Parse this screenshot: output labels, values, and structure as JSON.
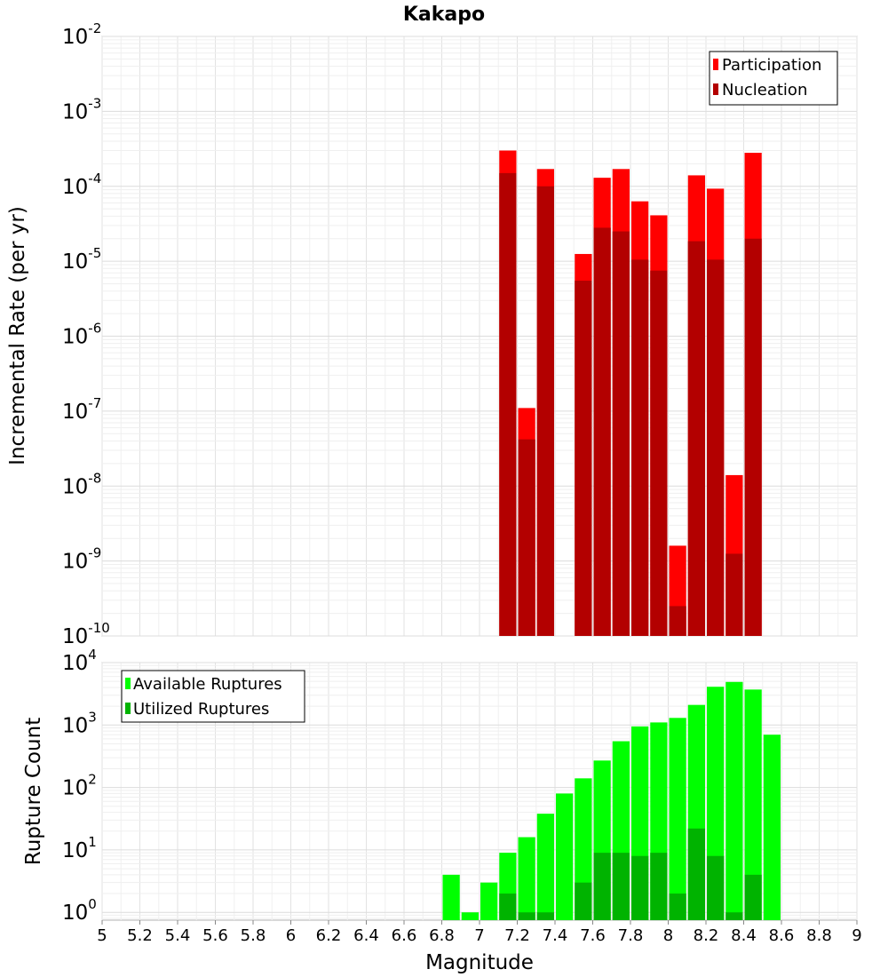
{
  "chart_data": [
    {
      "type": "bar",
      "title": "Kakapo",
      "ylabel": "Incremental Rate (per yr)",
      "xlabel": "",
      "xlim": [
        5,
        9
      ],
      "ylim": [
        1e-10,
        0.01
      ],
      "yscale": "log",
      "ytick_labels": [
        {
          "base": "10",
          "exp": "-10"
        },
        {
          "base": "10",
          "exp": "-9"
        },
        {
          "base": "10",
          "exp": "-8"
        },
        {
          "base": "10",
          "exp": "-7"
        },
        {
          "base": "10",
          "exp": "-6"
        },
        {
          "base": "10",
          "exp": "-5"
        },
        {
          "base": "10",
          "exp": "-4"
        },
        {
          "base": "10",
          "exp": "-3"
        },
        {
          "base": "10",
          "exp": "-2"
        }
      ],
      "grid": true,
      "legend_position": "top-right",
      "x": [
        7.15,
        7.25,
        7.35,
        7.55,
        7.65,
        7.75,
        7.85,
        7.95,
        8.05,
        8.15,
        8.25,
        8.35,
        8.45
      ],
      "series": [
        {
          "name": "Participation",
          "color": "#ff0000",
          "values": [
            0.0003,
            1.1e-07,
            0.00017,
            1.25e-05,
            0.00013,
            0.00017,
            6.3e-05,
            4.1e-05,
            1.6e-09,
            0.00014,
            9.3e-05,
            1.4e-08,
            0.00028
          ]
        },
        {
          "name": "Nucleation",
          "color": "#b30000",
          "values": [
            0.00015,
            4.2e-08,
            0.0001,
            5.5e-06,
            2.8e-05,
            2.5e-05,
            1.05e-05,
            7.5e-06,
            2.5e-10,
            1.85e-05,
            1.05e-05,
            1.25e-09,
            2e-05
          ]
        }
      ]
    },
    {
      "type": "bar",
      "title": "",
      "ylabel": "Rupture Count",
      "xlabel": "Magnitude",
      "xlim": [
        5,
        9
      ],
      "ylim": [
        0.75,
        10000
      ],
      "yscale": "log",
      "ytick_labels": [
        {
          "base": "10",
          "exp": "0"
        },
        {
          "base": "10",
          "exp": "1"
        },
        {
          "base": "10",
          "exp": "2"
        },
        {
          "base": "10",
          "exp": "3"
        },
        {
          "base": "10",
          "exp": "4"
        }
      ],
      "xtick_labels": [
        "5",
        "5.2",
        "5.4",
        "5.6",
        "5.8",
        "6",
        "6.2",
        "6.4",
        "6.6",
        "6.8",
        "7",
        "7.2",
        "7.4",
        "7.6",
        "7.8",
        "8",
        "8.2",
        "8.4",
        "8.6",
        "8.8",
        "9"
      ],
      "grid": true,
      "legend_position": "top-left",
      "x": [
        6.85,
        6.95,
        7.05,
        7.15,
        7.25,
        7.35,
        7.45,
        7.55,
        7.65,
        7.75,
        7.85,
        7.95,
        8.05,
        8.15,
        8.25,
        8.35,
        8.45,
        8.55
      ],
      "series": [
        {
          "name": "Available Ruptures",
          "color": "#00ff00",
          "values": [
            4,
            1,
            3,
            9,
            16,
            38,
            80,
            140,
            270,
            550,
            950,
            1100,
            1300,
            2100,
            4100,
            4900,
            3700,
            700
          ]
        },
        {
          "name": "Utilized Ruptures",
          "color": "#00b300",
          "values": [
            null,
            null,
            null,
            2,
            1,
            1,
            null,
            3,
            9,
            9,
            8,
            9,
            2,
            22,
            8,
            1,
            4,
            null
          ]
        }
      ]
    }
  ]
}
